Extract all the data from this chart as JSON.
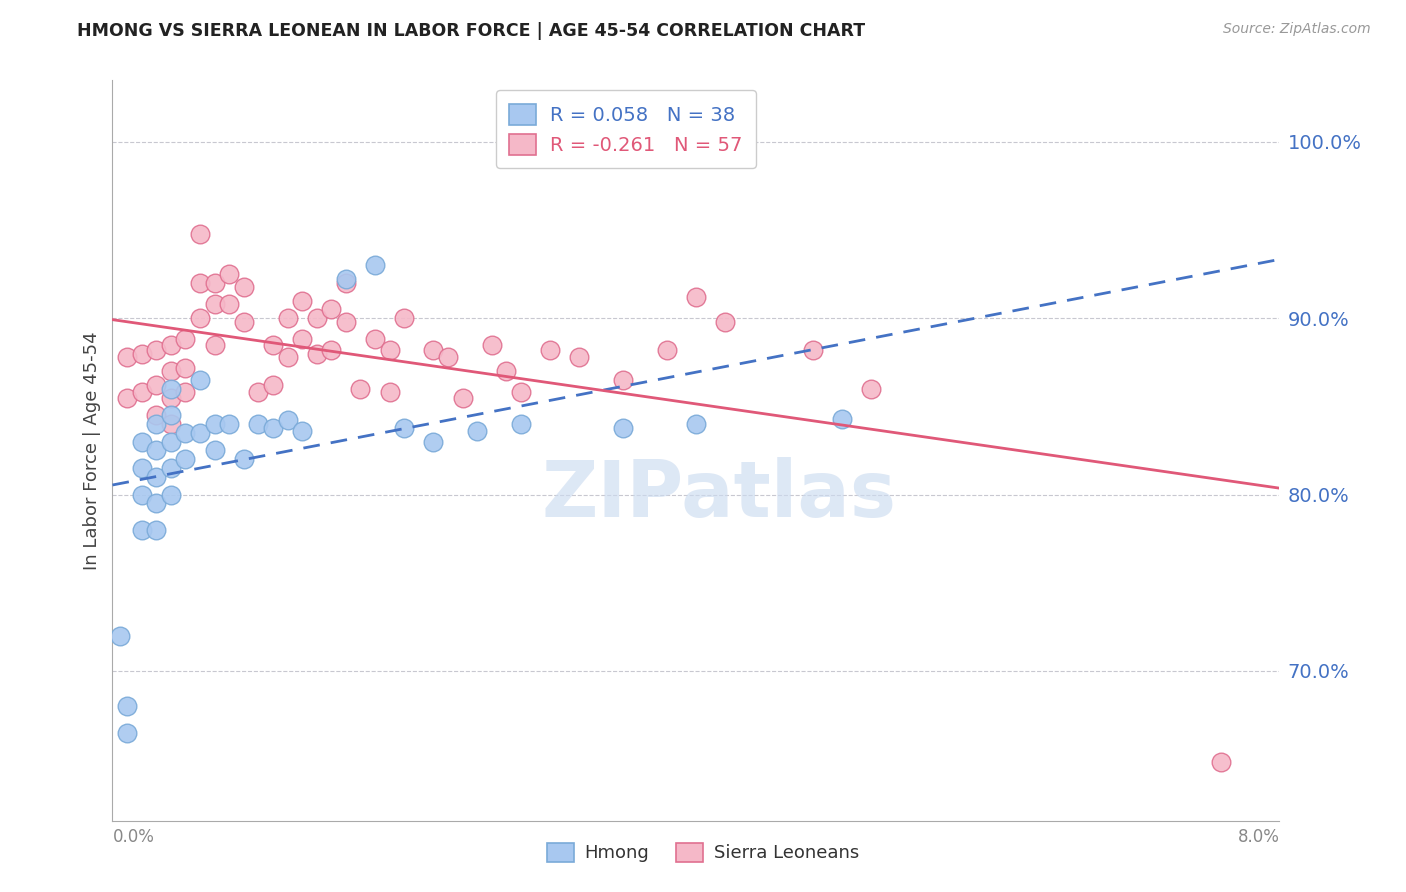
{
  "title": "HMONG VS SIERRA LEONEAN IN LABOR FORCE | AGE 45-54 CORRELATION CHART",
  "source": "Source: ZipAtlas.com",
  "ylabel": "In Labor Force | Age 45-54",
  "ytick_labels": [
    "100.0%",
    "90.0%",
    "80.0%",
    "70.0%"
  ],
  "ytick_values": [
    1.0,
    0.9,
    0.8,
    0.7
  ],
  "xlim": [
    0.0,
    0.08
  ],
  "ylim": [
    0.615,
    1.035
  ],
  "watermark": "ZIPatlas",
  "hmong_R": 0.058,
  "hmong_N": 38,
  "sierra_R": -0.261,
  "sierra_N": 57,
  "hmong_color": "#a8c8f0",
  "sierra_color": "#f5b8c8",
  "hmong_line_color": "#4472c4",
  "sierra_line_color": "#e05878",
  "hmong_marker_edge": "#7aaad8",
  "sierra_marker_edge": "#e07090",
  "hmong_x": [
    0.0005,
    0.001,
    0.001,
    0.002,
    0.002,
    0.002,
    0.002,
    0.003,
    0.003,
    0.003,
    0.003,
    0.003,
    0.004,
    0.004,
    0.004,
    0.004,
    0.004,
    0.005,
    0.005,
    0.006,
    0.006,
    0.007,
    0.007,
    0.008,
    0.009,
    0.01,
    0.011,
    0.012,
    0.013,
    0.016,
    0.018,
    0.02,
    0.022,
    0.025,
    0.028,
    0.035,
    0.04,
    0.05
  ],
  "hmong_y": [
    0.72,
    0.68,
    0.665,
    0.83,
    0.815,
    0.8,
    0.78,
    0.84,
    0.825,
    0.81,
    0.795,
    0.78,
    0.86,
    0.845,
    0.83,
    0.815,
    0.8,
    0.835,
    0.82,
    0.865,
    0.835,
    0.84,
    0.825,
    0.84,
    0.82,
    0.84,
    0.838,
    0.842,
    0.836,
    0.922,
    0.93,
    0.838,
    0.83,
    0.836,
    0.84,
    0.838,
    0.84,
    0.843
  ],
  "sierra_x": [
    0.001,
    0.001,
    0.002,
    0.002,
    0.003,
    0.003,
    0.003,
    0.004,
    0.004,
    0.004,
    0.004,
    0.005,
    0.005,
    0.005,
    0.006,
    0.006,
    0.006,
    0.007,
    0.007,
    0.007,
    0.008,
    0.008,
    0.009,
    0.009,
    0.01,
    0.011,
    0.011,
    0.012,
    0.012,
    0.013,
    0.013,
    0.014,
    0.014,
    0.015,
    0.015,
    0.016,
    0.016,
    0.017,
    0.018,
    0.019,
    0.019,
    0.02,
    0.022,
    0.023,
    0.024,
    0.026,
    0.027,
    0.028,
    0.03,
    0.032,
    0.035,
    0.038,
    0.04,
    0.042,
    0.048,
    0.052,
    0.076
  ],
  "sierra_y": [
    0.878,
    0.855,
    0.88,
    0.858,
    0.882,
    0.862,
    0.845,
    0.885,
    0.87,
    0.855,
    0.84,
    0.888,
    0.872,
    0.858,
    0.948,
    0.92,
    0.9,
    0.92,
    0.908,
    0.885,
    0.925,
    0.908,
    0.918,
    0.898,
    0.858,
    0.885,
    0.862,
    0.9,
    0.878,
    0.91,
    0.888,
    0.9,
    0.88,
    0.905,
    0.882,
    0.92,
    0.898,
    0.86,
    0.888,
    0.882,
    0.858,
    0.9,
    0.882,
    0.878,
    0.855,
    0.885,
    0.87,
    0.858,
    0.882,
    0.878,
    0.865,
    0.882,
    0.912,
    0.898,
    0.882,
    0.86,
    0.648
  ]
}
